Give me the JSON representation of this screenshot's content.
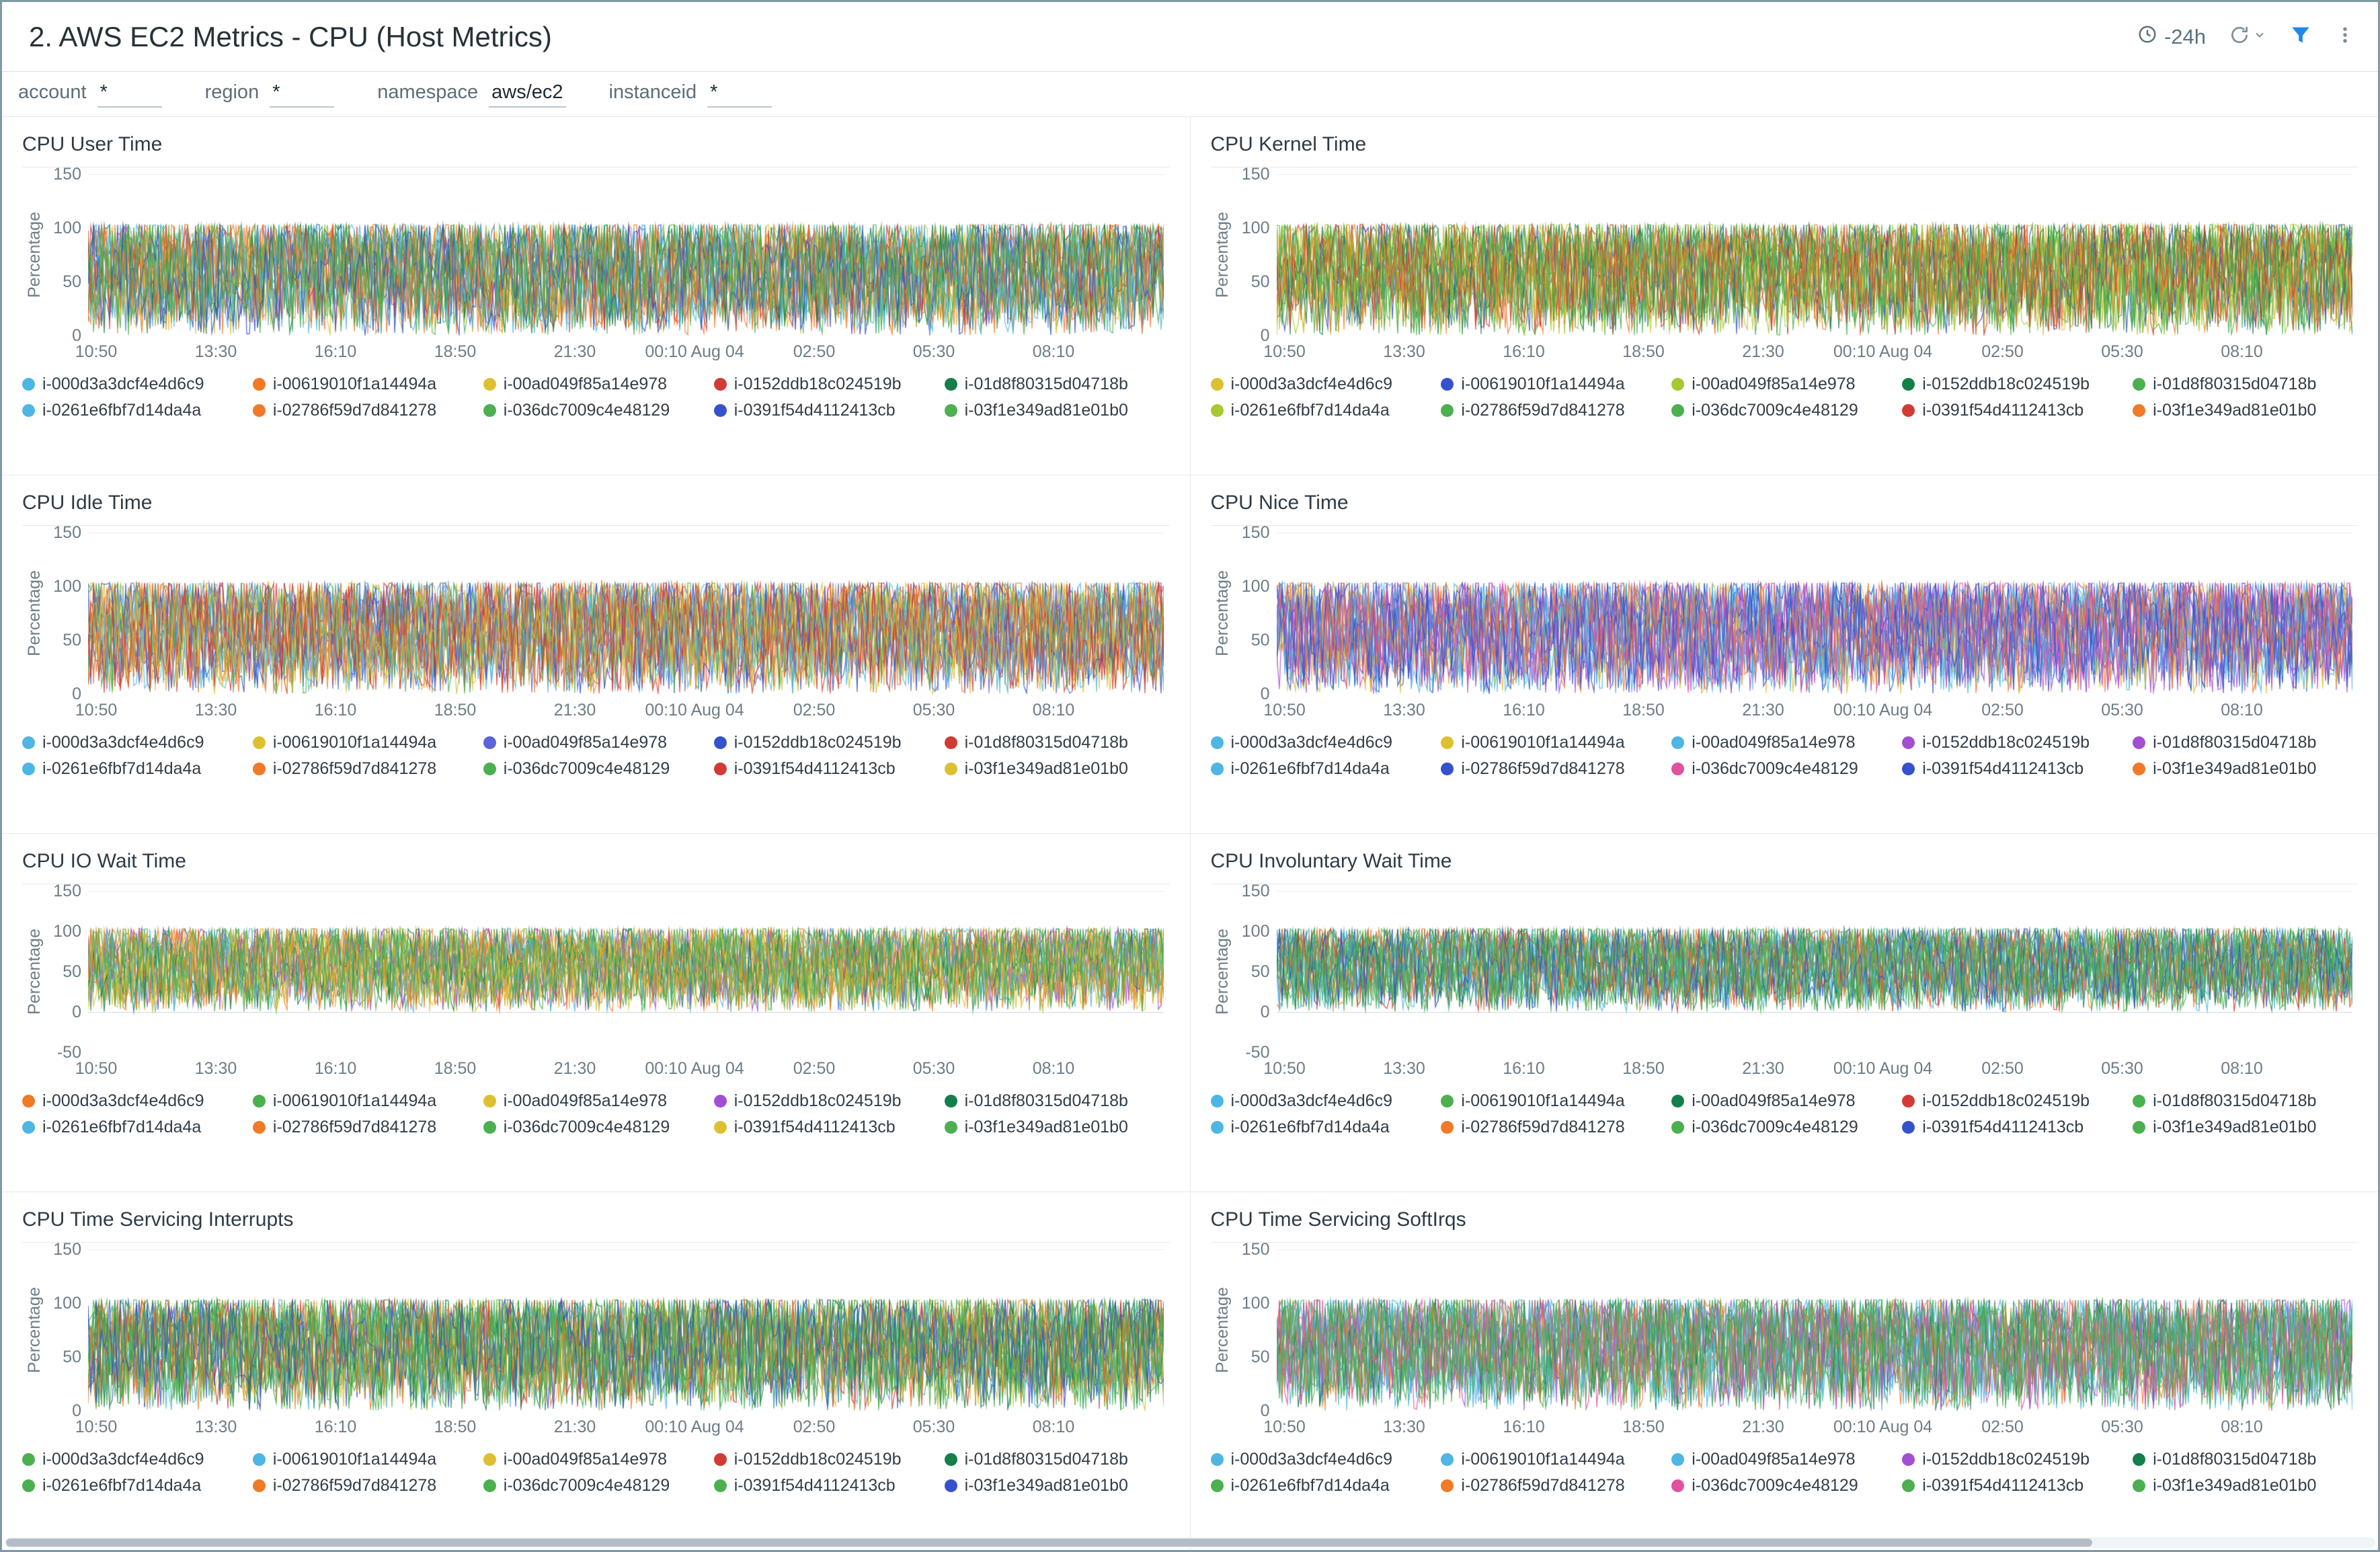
{
  "header": {
    "title": "2. AWS EC2 Metrics - CPU (Host Metrics)",
    "time_range": "-24h",
    "icons": [
      "clock-icon",
      "refresh-icon",
      "chevron-down-icon",
      "filter-icon",
      "kebab-menu-icon"
    ],
    "accent_color": "#1e88f0"
  },
  "filters": [
    {
      "label": "account",
      "value": "*"
    },
    {
      "label": "region",
      "value": "*"
    },
    {
      "label": "namespace",
      "value": "aws/ec2"
    },
    {
      "label": "instanceid",
      "value": "*"
    }
  ],
  "instances": [
    "i-000d3a3dcf4e4d6c9",
    "i-00619010f1a14494a",
    "i-00ad049f85a14e978",
    "i-0152ddb18c024519b",
    "i-01d8f80315d04718b",
    "i-0261e6fbf7d14da4a",
    "i-02786f59d7d841278",
    "i-036dc7009c4e48129",
    "i-0391f54d4112413cb",
    "i-03f1e349ad81e01b0"
  ],
  "x_ticks": [
    "10:50",
    "13:30",
    "16:10",
    "18:50",
    "21:30",
    "00:10 Aug 04",
    "02:50",
    "05:30",
    "08:10"
  ],
  "chart_data": [
    {
      "type": "line",
      "title": "CPU User Time",
      "ylabel": "Percentage",
      "yticks": [
        150,
        100,
        50,
        0
      ],
      "ylim": [
        0,
        150
      ],
      "value_range": [
        0,
        100
      ],
      "signal": "dense-random-noise",
      "grid": true,
      "legend_position": "bottom",
      "colors": [
        "#4db6e2",
        "#f07a28",
        "#ddc032",
        "#d23b35",
        "#157f4b",
        "#4db6e2",
        "#f07a28",
        "#4caf50",
        "#3552cc",
        "#4caf50"
      ]
    },
    {
      "type": "line",
      "title": "CPU Kernel Time",
      "ylabel": "Percentage",
      "yticks": [
        150,
        100,
        50,
        0
      ],
      "ylim": [
        0,
        150
      ],
      "value_range": [
        0,
        100
      ],
      "signal": "dense-random-noise",
      "grid": true,
      "legend_position": "bottom",
      "colors": [
        "#ddc032",
        "#3552cc",
        "#a6c832",
        "#157f4b",
        "#4caf50",
        "#a6c832",
        "#4caf50",
        "#4caf50",
        "#d23b35",
        "#f07a28"
      ]
    },
    {
      "type": "line",
      "title": "CPU Idle Time",
      "ylabel": "Percentage",
      "yticks": [
        150,
        100,
        50,
        0
      ],
      "ylim": [
        0,
        150
      ],
      "value_range": [
        0,
        100
      ],
      "signal": "dense-random-noise",
      "grid": true,
      "legend_position": "bottom",
      "colors": [
        "#4db6e2",
        "#ddc032",
        "#5b64d8",
        "#3552cc",
        "#d23b35",
        "#4db6e2",
        "#f07a28",
        "#4caf50",
        "#d23b35",
        "#ddc032"
      ]
    },
    {
      "type": "line",
      "title": "CPU Nice Time",
      "ylabel": "Percentage",
      "yticks": [
        150,
        100,
        50,
        0
      ],
      "ylim": [
        0,
        150
      ],
      "value_range": [
        0,
        100
      ],
      "signal": "dense-random-noise",
      "grid": true,
      "legend_position": "bottom",
      "colors": [
        "#4db6e2",
        "#ddc032",
        "#4db6e2",
        "#a34fd4",
        "#a34fd4",
        "#4db6e2",
        "#3552cc",
        "#e0519e",
        "#3552cc",
        "#f07a28"
      ]
    },
    {
      "type": "line",
      "title": "CPU IO Wait Time",
      "ylabel": "Percentage",
      "yticks": [
        150,
        100,
        50,
        0,
        -50
      ],
      "ylim": [
        -50,
        150
      ],
      "value_range": [
        0,
        100
      ],
      "signal": "dense-random-noise",
      "grid": true,
      "legend_position": "bottom",
      "colors": [
        "#f07a28",
        "#4caf50",
        "#ddc032",
        "#a34fd4",
        "#157f4b",
        "#4db6e2",
        "#f07a28",
        "#4caf50",
        "#ddc032",
        "#4caf50"
      ]
    },
    {
      "type": "line",
      "title": "CPU Involuntary Wait Time",
      "ylabel": "Percentage",
      "yticks": [
        150,
        100,
        50,
        0,
        -50
      ],
      "ylim": [
        -50,
        150
      ],
      "value_range": [
        0,
        100
      ],
      "signal": "dense-random-noise",
      "grid": true,
      "legend_position": "bottom",
      "colors": [
        "#4db6e2",
        "#4caf50",
        "#157f4b",
        "#d23b35",
        "#4caf50",
        "#4db6e2",
        "#f07a28",
        "#4caf50",
        "#3552cc",
        "#4caf50"
      ]
    },
    {
      "type": "line",
      "title": "CPU Time Servicing Interrupts",
      "ylabel": "Percentage",
      "yticks": [
        150,
        100,
        50,
        0
      ],
      "ylim": [
        0,
        150
      ],
      "value_range": [
        0,
        100
      ],
      "signal": "dense-random-noise",
      "grid": true,
      "legend_position": "bottom",
      "colors": [
        "#4caf50",
        "#4db6e2",
        "#ddc032",
        "#d23b35",
        "#157f4b",
        "#4caf50",
        "#f07a28",
        "#4caf50",
        "#4caf50",
        "#3552cc"
      ]
    },
    {
      "type": "line",
      "title": "CPU Time Servicing SoftIrqs",
      "ylabel": "Percentage",
      "yticks": [
        150,
        100,
        50,
        0
      ],
      "ylim": [
        0,
        150
      ],
      "value_range": [
        0,
        100
      ],
      "signal": "dense-random-noise",
      "grid": true,
      "legend_position": "bottom",
      "colors": [
        "#4db6e2",
        "#4db6e2",
        "#4db6e2",
        "#a34fd4",
        "#157f4b",
        "#4caf50",
        "#f07a28",
        "#e0519e",
        "#4caf50",
        "#4caf50"
      ]
    }
  ]
}
